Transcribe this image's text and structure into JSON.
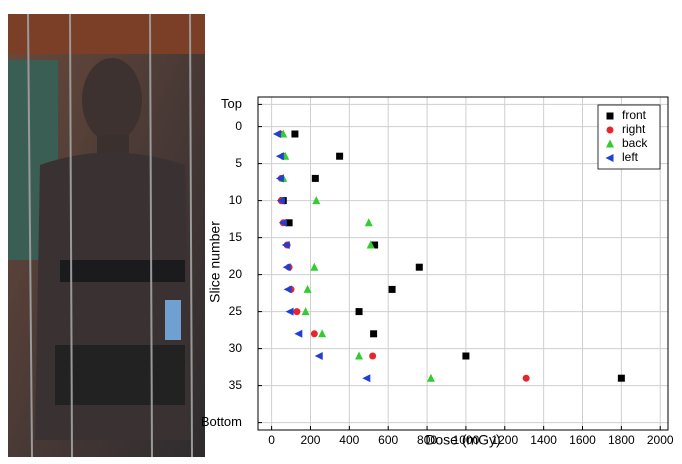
{
  "chart_data": {
    "type": "scatter",
    "xlabel": "Dose (mGy)",
    "ylabel": "Slice number",
    "xlim": [
      -70,
      2040
    ],
    "xticks": [
      0,
      200,
      400,
      600,
      800,
      1000,
      1200,
      1400,
      1600,
      1800,
      2000
    ],
    "ylim": [
      -4,
      41
    ],
    "y_inverted": true,
    "yticks": [
      {
        "value": -3,
        "label": "Top"
      },
      0,
      5,
      10,
      15,
      20,
      25,
      30,
      35,
      {
        "value": 40,
        "label": "Bottom"
      }
    ],
    "grid": true,
    "legend": "upper right",
    "series": [
      {
        "name": "front",
        "color": "#000000",
        "marker": "square",
        "x": [
          120,
          350,
          225,
          60,
          90,
          530,
          760,
          620,
          450,
          525,
          1000,
          1800
        ],
        "y": [
          1,
          4,
          7,
          10,
          13,
          16,
          19,
          22,
          25,
          28,
          31,
          34
        ]
      },
      {
        "name": "right",
        "color": "#e8262a",
        "marker": "circle",
        "x": [
          45,
          60,
          50,
          50,
          60,
          80,
          90,
          100,
          130,
          220,
          520,
          1310
        ],
        "y": [
          1,
          4,
          7,
          10,
          13,
          16,
          19,
          22,
          25,
          28,
          31,
          34
        ]
      },
      {
        "name": "back",
        "color": "#33cc33",
        "marker": "triangle-up",
        "x": [
          60,
          70,
          60,
          230,
          500,
          510,
          220,
          185,
          175,
          260,
          450,
          820
        ],
        "y": [
          1,
          4,
          7,
          10,
          13,
          16,
          19,
          22,
          25,
          28,
          31,
          34
        ]
      },
      {
        "name": "left",
        "color": "#1f3fd6",
        "marker": "triangle-left",
        "x": [
          30,
          45,
          45,
          50,
          60,
          75,
          80,
          85,
          95,
          140,
          245,
          490
        ],
        "y": [
          1,
          4,
          7,
          10,
          13,
          16,
          19,
          22,
          25,
          28,
          31,
          34
        ]
      }
    ]
  }
}
